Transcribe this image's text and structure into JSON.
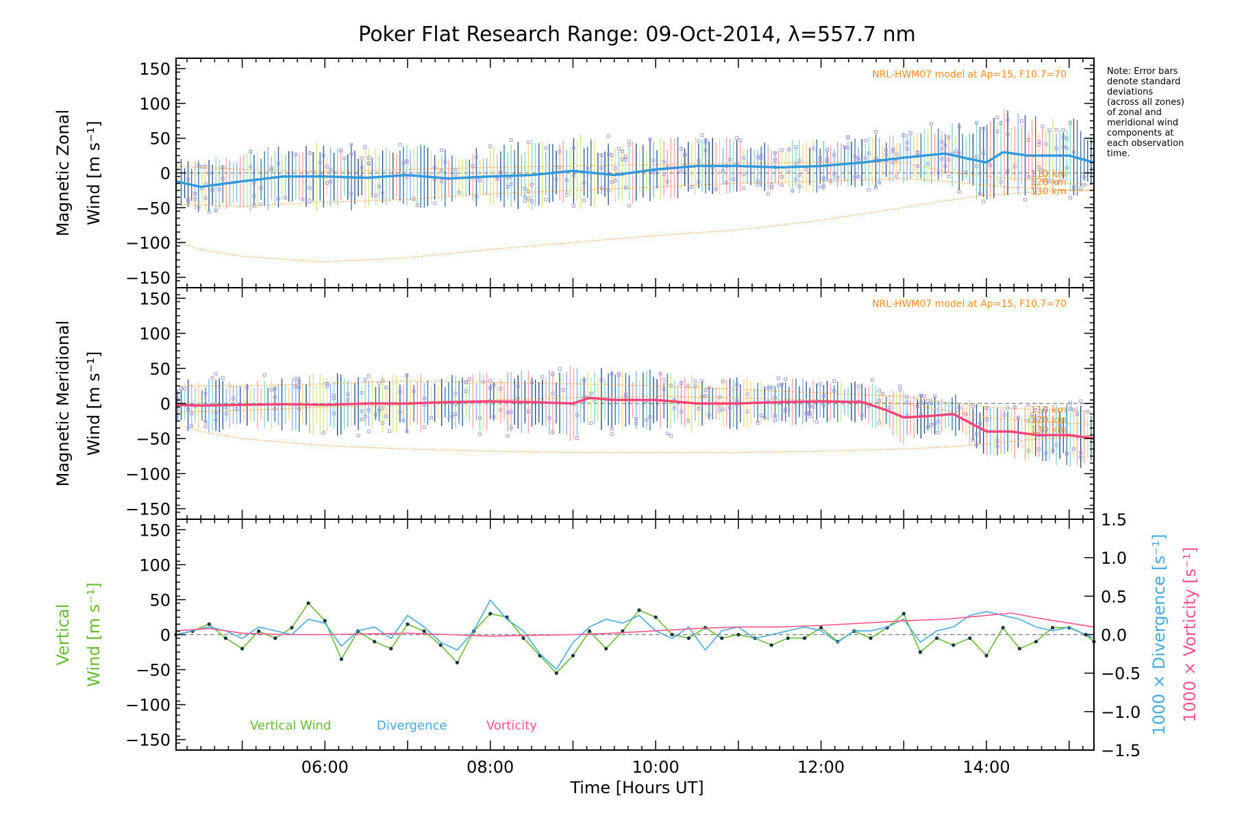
{
  "title": "Poker Flat Research Range: 09-Oct-2014, λ=557.7 nm",
  "xlabel": "Time [Hours UT]",
  "note_lines": [
    "Note: Error bars",
    "denote standard",
    "deviations",
    "(across all zones)",
    "of zonal and",
    "meridional wind",
    "components at",
    "each observation",
    "time."
  ],
  "colors": {
    "zonal_mean": "#3399dd",
    "meridional_mean": "#ff4477",
    "vertical": "#66bb33",
    "vertical_points": "#113344",
    "divergence": "#44aadd",
    "vorticity": "#ff5588",
    "model": "#ff8c1a",
    "zone_points": "#a599dd",
    "error_bar": "#1a4a8a"
  },
  "chart_data": [
    {
      "type": "line",
      "panel": "zonal",
      "ylabel_lines": [
        "Magnetic Zonal",
        "Wind [m s⁻¹]"
      ],
      "ylabel_color": "#000000",
      "ylim": [
        -165,
        165
      ],
      "yticks": [
        -150,
        -100,
        -50,
        0,
        50,
        100,
        150
      ],
      "xlim": [
        4.2,
        15.3
      ],
      "xticks": [
        6,
        8,
        10,
        12,
        14
      ],
      "xticklabels": [
        "06:00",
        "08:00",
        "10:00",
        "12:00",
        "14:00"
      ],
      "model_label": "NRL-HWM07 model at Ap=15, F10.7=70",
      "model_alt_labels": [
        "110 km",
        "120 km",
        "130 km"
      ],
      "series": [
        {
          "role": "mean",
          "x": [
            4.2,
            4.5,
            5.0,
            5.5,
            6.0,
            6.5,
            7.0,
            7.5,
            8.0,
            8.5,
            9.0,
            9.5,
            10.0,
            10.5,
            11.0,
            11.5,
            12.0,
            12.5,
            13.0,
            13.5,
            13.8,
            14.0,
            14.2,
            14.5,
            15.0,
            15.3
          ],
          "values": [
            -12,
            -20,
            -12,
            -5,
            -5,
            -7,
            -3,
            -8,
            -5,
            -3,
            3,
            -3,
            5,
            10,
            10,
            8,
            10,
            15,
            22,
            28,
            20,
            15,
            30,
            25,
            25,
            15
          ],
          "spread": [
            25,
            30,
            35,
            35,
            40,
            35,
            35,
            35,
            35,
            40,
            45,
            35,
            35,
            35,
            35,
            30,
            30,
            30,
            30,
            35,
            40,
            55,
            50,
            45,
            45,
            40
          ]
        },
        {
          "role": "model",
          "name": "110 km",
          "x": [
            4.2,
            5,
            6,
            7,
            8,
            9,
            10,
            11,
            12,
            13,
            13.5,
            14,
            14.5,
            15,
            15.3
          ],
          "values": [
            10,
            5,
            2,
            5,
            8,
            10,
            12,
            14,
            15,
            15,
            2,
            -5,
            -10,
            -15,
            -17
          ]
        },
        {
          "role": "model",
          "name": "120 km",
          "x": [
            4.2,
            5,
            6,
            7,
            8,
            9,
            10,
            11,
            12,
            13,
            13.5,
            14,
            14.5,
            15,
            15.3
          ],
          "values": [
            -45,
            -48,
            -42,
            -38,
            -30,
            -25,
            -20,
            -15,
            -12,
            -8,
            -12,
            -18,
            -22,
            -25,
            -26
          ]
        },
        {
          "role": "model",
          "name": "130 km",
          "x": [
            4.2,
            4.5,
            5,
            6,
            7,
            8,
            9,
            10,
            11,
            12,
            13,
            13.5,
            14,
            14.5,
            15,
            15.3
          ],
          "values": [
            -100,
            -110,
            -120,
            -128,
            -122,
            -110,
            -100,
            -90,
            -82,
            -68,
            -50,
            -40,
            -32,
            -28,
            -25,
            -24
          ]
        }
      ]
    },
    {
      "type": "line",
      "panel": "meridional",
      "ylabel_lines": [
        "Magnetic Meridional",
        "Wind [m s⁻¹]"
      ],
      "ylabel_color": "#000000",
      "ylim": [
        -165,
        165
      ],
      "yticks": [
        -150,
        -100,
        -50,
        0,
        50,
        100,
        150
      ],
      "xlim": [
        4.2,
        15.3
      ],
      "model_label": "NRL-HWM07 model at Ap=15, F10.7=70",
      "model_alt_labels": [
        "110 km",
        "120 km",
        "130 km"
      ],
      "series": [
        {
          "role": "mean",
          "x": [
            4.2,
            4.5,
            5.0,
            5.5,
            6.0,
            6.5,
            7.0,
            7.5,
            8.0,
            8.5,
            9.0,
            9.2,
            9.5,
            10.0,
            10.5,
            11.0,
            11.5,
            12.0,
            12.5,
            12.8,
            13.0,
            13.3,
            13.6,
            14.0,
            14.3,
            14.6,
            15.0,
            15.3
          ],
          "values": [
            -2,
            -3,
            -2,
            -1,
            -2,
            0,
            0,
            2,
            3,
            2,
            0,
            8,
            5,
            5,
            0,
            0,
            2,
            3,
            2,
            -10,
            -20,
            -18,
            -15,
            -40,
            -40,
            -45,
            -45,
            -50
          ],
          "spread": [
            30,
            30,
            30,
            30,
            40,
            30,
            35,
            30,
            35,
            35,
            45,
            35,
            35,
            35,
            30,
            30,
            30,
            25,
            25,
            25,
            30,
            25,
            25,
            30,
            30,
            30,
            35,
            35
          ]
        },
        {
          "role": "model",
          "name": "110 km",
          "x": [
            4.2,
            5,
            6,
            7,
            8,
            9,
            10,
            11,
            12,
            13,
            13.5,
            14,
            14.5,
            15,
            15.3
          ],
          "values": [
            25,
            25,
            28,
            32,
            30,
            28,
            25,
            20,
            15,
            10,
            2,
            -5,
            -8,
            -10,
            -12
          ]
        },
        {
          "role": "model",
          "name": "120 km",
          "x": [
            4.2,
            5,
            6,
            7,
            8,
            9,
            10,
            11,
            12,
            13,
            13.5,
            14,
            14.5,
            15,
            15.3
          ],
          "values": [
            -12,
            -10,
            -5,
            -2,
            5,
            8,
            10,
            8,
            5,
            0,
            -10,
            -20,
            -25,
            -28,
            -30
          ]
        },
        {
          "role": "model",
          "name": "130 km",
          "x": [
            4.2,
            4.5,
            5,
            6,
            7,
            8,
            9,
            10,
            11,
            12,
            13,
            13.5,
            14,
            14.5,
            15,
            15.3
          ],
          "values": [
            -30,
            -40,
            -50,
            -60,
            -65,
            -68,
            -70,
            -70,
            -70,
            -68,
            -65,
            -62,
            -58,
            -52,
            -48,
            -45
          ]
        }
      ]
    },
    {
      "type": "line",
      "panel": "vertical",
      "ylabel_lines": [
        "Vertical",
        "Wind [m s⁻¹]"
      ],
      "ylabel_color": "#66bb33",
      "ylim": [
        -165,
        165
      ],
      "yticks": [
        -150,
        -100,
        -50,
        0,
        50,
        100,
        150
      ],
      "xlim": [
        4.2,
        15.3
      ],
      "right_axis": {
        "ylim": [
          -1.5,
          1.5
        ],
        "yticks": [
          -1.5,
          -1.0,
          -0.5,
          0.0,
          0.5,
          1.0,
          1.5
        ],
        "yticklabels": [
          "−1.5",
          "−1.0",
          "−0.5",
          "0.0",
          "0.5",
          "1.0",
          "1.5"
        ],
        "label_divergence": "1000 × Divergence [s⁻¹]",
        "label_vorticity": "1000 × Vorticity [s⁻¹]"
      },
      "legend": [
        "Vertical Wind",
        "Divergence",
        "Vorticity"
      ],
      "series": [
        {
          "name": "Vertical Wind",
          "axis": "left",
          "x": [
            4.2,
            4.4,
            4.6,
            4.8,
            5.0,
            5.2,
            5.4,
            5.6,
            5.8,
            6.0,
            6.2,
            6.4,
            6.6,
            6.8,
            7.0,
            7.2,
            7.4,
            7.6,
            7.8,
            8.0,
            8.2,
            8.4,
            8.6,
            8.8,
            9.0,
            9.2,
            9.4,
            9.6,
            9.8,
            10.0,
            10.2,
            10.4,
            10.6,
            10.8,
            11.0,
            11.2,
            11.4,
            11.6,
            11.8,
            12.0,
            12.2,
            12.4,
            12.6,
            12.8,
            13.0,
            13.2,
            13.4,
            13.6,
            13.8,
            14.0,
            14.2,
            14.4,
            14.6,
            14.8,
            15.0,
            15.2,
            15.3
          ],
          "values": [
            0,
            5,
            15,
            -5,
            -20,
            5,
            -5,
            10,
            45,
            20,
            -35,
            5,
            -10,
            -20,
            15,
            5,
            -15,
            -40,
            5,
            30,
            25,
            -5,
            -30,
            -55,
            -30,
            5,
            -20,
            5,
            35,
            25,
            0,
            -5,
            10,
            -5,
            0,
            -5,
            -15,
            -5,
            -5,
            10,
            -10,
            5,
            -5,
            10,
            30,
            -25,
            -5,
            -15,
            -5,
            -30,
            10,
            -20,
            -10,
            10,
            10,
            0,
            -10
          ]
        },
        {
          "name": "Divergence",
          "axis": "right",
          "x": [
            4.2,
            4.4,
            4.6,
            4.8,
            5.0,
            5.2,
            5.4,
            5.6,
            5.8,
            6.0,
            6.2,
            6.4,
            6.6,
            6.8,
            7.0,
            7.2,
            7.4,
            7.6,
            7.8,
            8.0,
            8.2,
            8.4,
            8.6,
            8.8,
            9.0,
            9.2,
            9.4,
            9.6,
            9.8,
            10.0,
            10.2,
            10.4,
            10.6,
            10.8,
            11.0,
            11.2,
            11.4,
            11.6,
            11.8,
            12.0,
            12.2,
            12.4,
            12.6,
            12.8,
            13.0,
            13.2,
            13.4,
            13.6,
            13.8,
            14.0,
            14.2,
            14.4,
            14.6,
            14.8,
            15.0,
            15.2,
            15.3
          ],
          "values": [
            0.0,
            0.05,
            0.1,
            0.05,
            -0.05,
            0.1,
            0.05,
            0.0,
            0.2,
            0.15,
            -0.15,
            0.05,
            0.1,
            -0.05,
            0.25,
            0.1,
            -0.1,
            -0.2,
            0.05,
            0.45,
            0.2,
            0.05,
            -0.25,
            -0.45,
            -0.1,
            0.1,
            0.2,
            0.15,
            0.25,
            0.05,
            -0.05,
            0.1,
            -0.2,
            0.05,
            0.1,
            -0.05,
            0.0,
            0.05,
            0.1,
            0.05,
            -0.1,
            0.05,
            0.05,
            0.1,
            0.2,
            -0.1,
            0.05,
            0.1,
            0.25,
            0.3,
            0.25,
            0.2,
            0.1,
            0.05,
            0.1,
            0.0,
            -0.05
          ]
        },
        {
          "name": "Vorticity",
          "axis": "right",
          "x": [
            4.2,
            4.6,
            5.0,
            5.5,
            6.0,
            6.5,
            7.0,
            7.5,
            8.0,
            8.5,
            9.0,
            9.5,
            10.0,
            10.5,
            11.0,
            11.5,
            12.0,
            12.5,
            13.0,
            13.5,
            14.0,
            14.3,
            14.6,
            15.0,
            15.3
          ],
          "values": [
            0.05,
            0.08,
            0.02,
            0.0,
            0.0,
            0.01,
            0.02,
            0.0,
            -0.02,
            -0.01,
            0.0,
            0.02,
            0.05,
            0.08,
            0.1,
            0.1,
            0.12,
            0.15,
            0.18,
            0.2,
            0.25,
            0.28,
            0.22,
            0.15,
            0.1
          ]
        }
      ]
    }
  ]
}
